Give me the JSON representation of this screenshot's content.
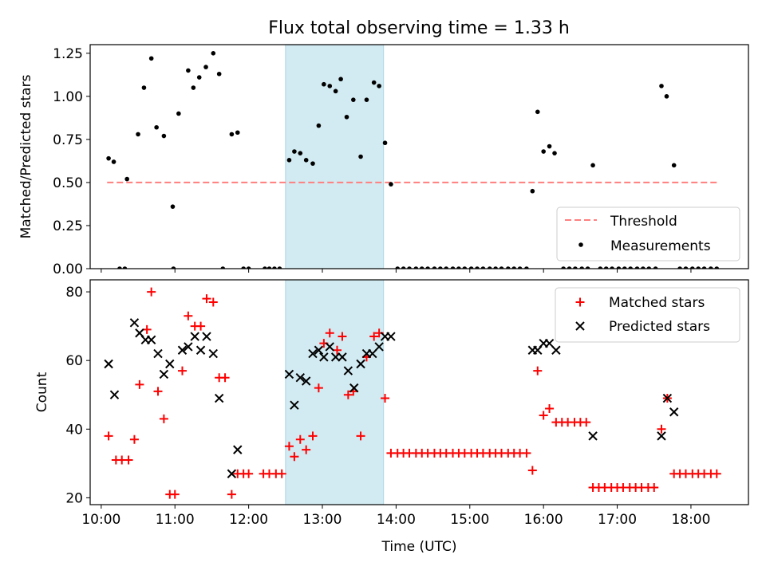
{
  "figure": {
    "title": "Flux total observing time = 1.33 h"
  },
  "colors": {
    "threshold": "#ff7f7f",
    "measurement": "#000000",
    "matched": "#ff0000",
    "predicted": "#000000",
    "band": "#add8e6"
  },
  "chart_data": [
    {
      "type": "scatter",
      "title": "Flux total observing time = 1.33 h",
      "xlabel": "",
      "ylabel": "Matched/Predicted stars",
      "xlim": [
        9.85,
        18.78
      ],
      "ylim": [
        0,
        1.3
      ],
      "x_ticks": [
        "10:00",
        "11:00",
        "12:00",
        "13:00",
        "14:00",
        "15:00",
        "16:00",
        "17:00",
        "18:00"
      ],
      "y_ticks": [
        "0.00",
        "0.25",
        "0.50",
        "0.75",
        "1.00",
        "1.25"
      ],
      "highlight_band": [
        12.5,
        13.83
      ],
      "legend": {
        "location": "lower right",
        "entries": [
          "Threshold",
          "Measurements"
        ]
      },
      "threshold": {
        "name": "Threshold",
        "x": [
          10.08,
          18.38
        ],
        "y": 0.5,
        "style": "dashed"
      },
      "series": [
        {
          "name": "Measurements",
          "marker": "dot",
          "points": [
            [
              10.1,
              0.64
            ],
            [
              10.17,
              0.62
            ],
            [
              10.35,
              0.52
            ],
            [
              10.5,
              0.78
            ],
            [
              10.58,
              1.05
            ],
            [
              10.68,
              1.22
            ],
            [
              10.75,
              0.82
            ],
            [
              10.85,
              0.77
            ],
            [
              10.97,
              0.36
            ],
            [
              11.05,
              0.9
            ],
            [
              11.18,
              1.15
            ],
            [
              11.25,
              1.05
            ],
            [
              11.33,
              1.11
            ],
            [
              11.42,
              1.17
            ],
            [
              11.52,
              1.25
            ],
            [
              11.6,
              1.13
            ],
            [
              11.77,
              0.78
            ],
            [
              11.85,
              0.79
            ],
            [
              12.55,
              0.63
            ],
            [
              12.62,
              0.68
            ],
            [
              12.7,
              0.67
            ],
            [
              12.78,
              0.63
            ],
            [
              12.87,
              0.61
            ],
            [
              12.95,
              0.83
            ],
            [
              13.02,
              1.07
            ],
            [
              13.1,
              1.06
            ],
            [
              13.18,
              1.03
            ],
            [
              13.25,
              1.1
            ],
            [
              13.33,
              0.88
            ],
            [
              13.42,
              0.98
            ],
            [
              13.52,
              0.65
            ],
            [
              13.6,
              0.98
            ],
            [
              13.7,
              1.08
            ],
            [
              13.77,
              1.06
            ],
            [
              13.85,
              0.73
            ],
            [
              13.93,
              0.49
            ],
            [
              15.85,
              0.45
            ],
            [
              15.92,
              0.91
            ],
            [
              16.0,
              0.68
            ],
            [
              16.08,
              0.71
            ],
            [
              16.15,
              0.67
            ],
            [
              16.67,
              0.6
            ],
            [
              17.6,
              1.06
            ],
            [
              17.67,
              1.0
            ],
            [
              17.77,
              0.6
            ],
            [
              10.25,
              0
            ],
            [
              10.32,
              0
            ],
            [
              10.98,
              0
            ],
            [
              11.65,
              0
            ],
            [
              11.93,
              0
            ],
            [
              12.0,
              0
            ],
            [
              12.22,
              0
            ],
            [
              12.28,
              0
            ],
            [
              12.35,
              0
            ],
            [
              12.42,
              0
            ],
            [
              14.02,
              0
            ],
            [
              14.1,
              0
            ],
            [
              14.18,
              0
            ],
            [
              14.27,
              0
            ],
            [
              14.35,
              0
            ],
            [
              14.43,
              0
            ],
            [
              14.52,
              0
            ],
            [
              14.6,
              0
            ],
            [
              14.68,
              0
            ],
            [
              14.77,
              0
            ],
            [
              14.85,
              0
            ],
            [
              14.93,
              0
            ],
            [
              15.02,
              0
            ],
            [
              15.1,
              0
            ],
            [
              15.18,
              0
            ],
            [
              15.27,
              0
            ],
            [
              15.35,
              0
            ],
            [
              15.43,
              0
            ],
            [
              15.52,
              0
            ],
            [
              15.6,
              0
            ],
            [
              15.68,
              0
            ],
            [
              15.77,
              0
            ],
            [
              16.27,
              0
            ],
            [
              16.35,
              0
            ],
            [
              16.43,
              0
            ],
            [
              16.52,
              0
            ],
            [
              16.6,
              0
            ],
            [
              16.77,
              0
            ],
            [
              16.85,
              0
            ],
            [
              16.93,
              0
            ],
            [
              17.02,
              0
            ],
            [
              17.1,
              0
            ],
            [
              17.18,
              0
            ],
            [
              17.27,
              0
            ],
            [
              17.35,
              0
            ],
            [
              17.43,
              0
            ],
            [
              17.52,
              0
            ],
            [
              17.85,
              0
            ],
            [
              17.93,
              0
            ],
            [
              18.02,
              0
            ],
            [
              18.1,
              0
            ],
            [
              18.18,
              0
            ],
            [
              18.27,
              0
            ],
            [
              18.35,
              0
            ]
          ]
        }
      ]
    },
    {
      "type": "scatter",
      "xlabel": "Time (UTC)",
      "ylabel": "Count",
      "xlim": [
        9.85,
        18.78
      ],
      "ylim": [
        18,
        83.5
      ],
      "x_ticks": [
        "10:00",
        "11:00",
        "12:00",
        "13:00",
        "14:00",
        "15:00",
        "16:00",
        "17:00",
        "18:00"
      ],
      "y_ticks": [
        "20",
        "40",
        "60",
        "80"
      ],
      "highlight_band": [
        12.5,
        13.83
      ],
      "legend": {
        "location": "upper right",
        "entries": [
          "Matched stars",
          "Predicted stars"
        ]
      },
      "series": [
        {
          "name": "Matched stars",
          "marker": "plus",
          "points": [
            [
              10.1,
              38
            ],
            [
              10.2,
              31
            ],
            [
              10.28,
              31
            ],
            [
              10.37,
              31
            ],
            [
              10.45,
              37
            ],
            [
              10.52,
              53
            ],
            [
              10.62,
              69
            ],
            [
              10.68,
              80
            ],
            [
              10.77,
              51
            ],
            [
              10.85,
              43
            ],
            [
              10.93,
              21
            ],
            [
              11.0,
              21
            ],
            [
              11.1,
              57
            ],
            [
              11.18,
              73
            ],
            [
              11.27,
              70
            ],
            [
              11.35,
              70
            ],
            [
              11.43,
              78
            ],
            [
              11.52,
              77
            ],
            [
              11.6,
              55
            ],
            [
              11.68,
              55
            ],
            [
              11.77,
              21
            ],
            [
              11.85,
              27
            ],
            [
              11.93,
              27
            ],
            [
              12.0,
              27
            ],
            [
              12.2,
              27
            ],
            [
              12.28,
              27
            ],
            [
              12.37,
              27
            ],
            [
              12.45,
              27
            ],
            [
              12.55,
              35
            ],
            [
              12.62,
              32
            ],
            [
              12.7,
              37
            ],
            [
              12.78,
              34
            ],
            [
              12.87,
              38
            ],
            [
              12.95,
              52
            ],
            [
              13.02,
              65
            ],
            [
              13.1,
              68
            ],
            [
              13.2,
              63
            ],
            [
              13.27,
              67
            ],
            [
              13.35,
              50
            ],
            [
              13.42,
              51
            ],
            [
              13.52,
              38
            ],
            [
              13.6,
              61
            ],
            [
              13.7,
              67
            ],
            [
              13.77,
              68
            ],
            [
              13.85,
              49
            ],
            [
              13.93,
              33
            ],
            [
              14.02,
              33
            ],
            [
              14.1,
              33
            ],
            [
              14.18,
              33
            ],
            [
              14.27,
              33
            ],
            [
              14.35,
              33
            ],
            [
              14.43,
              33
            ],
            [
              14.52,
              33
            ],
            [
              14.6,
              33
            ],
            [
              14.68,
              33
            ],
            [
              14.77,
              33
            ],
            [
              14.85,
              33
            ],
            [
              14.93,
              33
            ],
            [
              15.02,
              33
            ],
            [
              15.1,
              33
            ],
            [
              15.18,
              33
            ],
            [
              15.27,
              33
            ],
            [
              15.35,
              33
            ],
            [
              15.43,
              33
            ],
            [
              15.52,
              33
            ],
            [
              15.6,
              33
            ],
            [
              15.68,
              33
            ],
            [
              15.77,
              33
            ],
            [
              15.85,
              28
            ],
            [
              15.92,
              57
            ],
            [
              16.0,
              44
            ],
            [
              16.08,
              46
            ],
            [
              16.17,
              42
            ],
            [
              16.25,
              42
            ],
            [
              16.33,
              42
            ],
            [
              16.42,
              42
            ],
            [
              16.5,
              42
            ],
            [
              16.58,
              42
            ],
            [
              16.67,
              23
            ],
            [
              16.75,
              23
            ],
            [
              16.83,
              23
            ],
            [
              16.92,
              23
            ],
            [
              17.0,
              23
            ],
            [
              17.08,
              23
            ],
            [
              17.17,
              23
            ],
            [
              17.25,
              23
            ],
            [
              17.33,
              23
            ],
            [
              17.42,
              23
            ],
            [
              17.5,
              23
            ],
            [
              17.6,
              40
            ],
            [
              17.68,
              49
            ],
            [
              17.77,
              27
            ],
            [
              17.85,
              27
            ],
            [
              17.93,
              27
            ],
            [
              18.02,
              27
            ],
            [
              18.1,
              27
            ],
            [
              18.18,
              27
            ],
            [
              18.27,
              27
            ],
            [
              18.35,
              27
            ]
          ]
        },
        {
          "name": "Predicted stars",
          "marker": "cross",
          "points": [
            [
              10.1,
              59
            ],
            [
              10.18,
              50
            ],
            [
              10.45,
              71
            ],
            [
              10.52,
              68
            ],
            [
              10.6,
              66
            ],
            [
              10.68,
              66
            ],
            [
              10.77,
              62
            ],
            [
              10.85,
              56
            ],
            [
              10.93,
              59
            ],
            [
              11.1,
              63
            ],
            [
              11.18,
              64
            ],
            [
              11.27,
              67
            ],
            [
              11.35,
              63
            ],
            [
              11.43,
              67
            ],
            [
              11.52,
              62
            ],
            [
              11.6,
              49
            ],
            [
              11.77,
              27
            ],
            [
              11.85,
              34
            ],
            [
              12.55,
              56
            ],
            [
              12.62,
              47
            ],
            [
              12.7,
              55
            ],
            [
              12.78,
              54
            ],
            [
              12.87,
              62
            ],
            [
              12.95,
              63
            ],
            [
              13.02,
              61
            ],
            [
              13.1,
              64
            ],
            [
              13.18,
              61
            ],
            [
              13.27,
              61
            ],
            [
              13.35,
              57
            ],
            [
              13.43,
              52
            ],
            [
              13.52,
              59
            ],
            [
              13.6,
              62
            ],
            [
              13.68,
              62
            ],
            [
              13.77,
              64
            ],
            [
              13.85,
              67
            ],
            [
              13.93,
              67
            ],
            [
              15.85,
              63
            ],
            [
              15.92,
              63
            ],
            [
              16.0,
              65
            ],
            [
              16.08,
              65
            ],
            [
              16.17,
              63
            ],
            [
              16.67,
              38
            ],
            [
              17.6,
              38
            ],
            [
              17.68,
              49
            ],
            [
              17.77,
              45
            ]
          ]
        }
      ]
    }
  ]
}
